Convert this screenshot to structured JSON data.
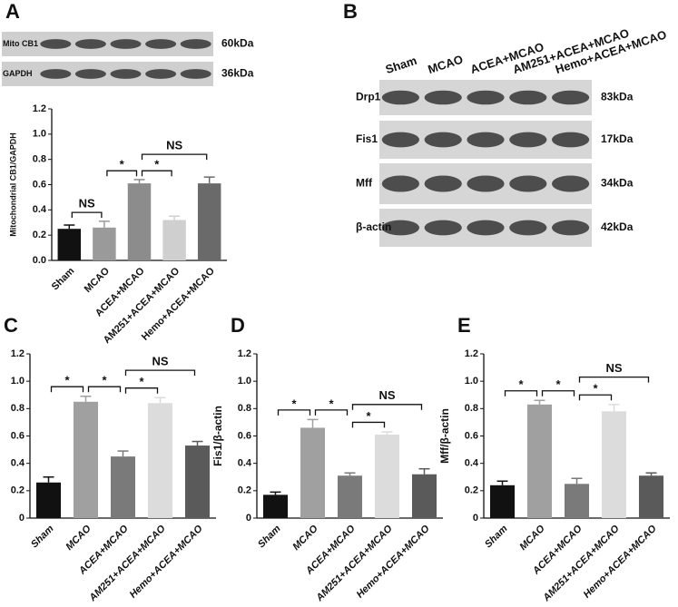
{
  "blots": [
    {
      "panel": "A",
      "rows": [
        {
          "label": "Mito CB1",
          "size": "60kDa"
        },
        {
          "label": "GAPDH",
          "size": "36kDa"
        }
      ]
    },
    {
      "panel": "B",
      "lanes": [
        "Sham",
        "MCAO",
        "ACEA+MCAO",
        "AM251+ACEA+MCAO",
        "Hemo+ACEA+MCAO"
      ],
      "rows": [
        {
          "label": "Drp1",
          "size": "83kDa"
        },
        {
          "label": "Fis1",
          "size": "17kDa"
        },
        {
          "label": "Mff",
          "size": "34kDa"
        },
        {
          "label": "β-actin",
          "size": "42kDa"
        }
      ]
    }
  ],
  "chart_data": [
    {
      "type": "bar",
      "panel": "A",
      "y_label": "Mitochondrial CB1/GAPDH",
      "italic": false,
      "categories": [
        "Sham",
        "MCAO",
        "ACEA+MCAO",
        "AM251+ACEA+MCAO",
        "Hemo+ACEA+MCAO"
      ],
      "values": [
        0.25,
        0.26,
        0.61,
        0.32,
        0.61
      ],
      "errors": [
        0.03,
        0.05,
        0.03,
        0.03,
        0.05
      ],
      "colors": [
        "#111111",
        "#9a9a9a",
        "#8c8c8c",
        "#cfcfcf",
        "#6a6a6a"
      ],
      "ylim": [
        0,
        1.2
      ],
      "yticks": [
        {
          "value": 0,
          "label": "0.0"
        },
        0.2,
        0.4,
        0.6,
        0.8,
        {
          "value": 1,
          "label": "1.0"
        },
        1.2
      ],
      "annotations": [
        {
          "from": "Sham",
          "to": "MCAO",
          "label": "NS"
        },
        {
          "from": "MCAO",
          "to": "ACEA+MCAO",
          "label": "*"
        },
        {
          "from": "ACEA+MCAO",
          "to": "AM251+ACEA+MCAO",
          "label": "*"
        },
        {
          "from": "ACEA+MCAO",
          "to": "Hemo+ACEA+MCAO",
          "label": "NS"
        }
      ]
    },
    {
      "type": "bar",
      "panel": "C",
      "y_label": "Drp1/β-actin",
      "italic": true,
      "categories": [
        "Sham",
        "MCAO",
        "ACEA+MCAO",
        "AM251+ACEA+MCAO",
        "Hemo+ACEA+MCAO"
      ],
      "values": [
        0.26,
        0.85,
        0.45,
        0.84,
        0.53
      ],
      "errors": [
        0.04,
        0.04,
        0.04,
        0.04,
        0.03
      ],
      "colors": [
        "#111111",
        "#a0a0a0",
        "#7a7a7a",
        "#dcdcdc",
        "#5a5a5a"
      ],
      "ylim": [
        0,
        1.2
      ],
      "yticks": [
        0,
        0.2,
        0.4,
        0.6,
        0.8,
        {
          "value": 1,
          "label": "1.0"
        },
        1.2
      ],
      "annotations": [
        {
          "from": "Sham",
          "to": "MCAO",
          "label": "*"
        },
        {
          "from": "MCAO",
          "to": "ACEA+MCAO",
          "label": "*"
        },
        {
          "from": "ACEA+MCAO",
          "to": "AM251+ACEA+MCAO",
          "label": "*"
        },
        {
          "from": "ACEA+MCAO",
          "to": "Hemo+ACEA+MCAO",
          "label": "NS"
        }
      ]
    },
    {
      "type": "bar",
      "panel": "D",
      "y_label": "Fis1/β-actin",
      "italic": true,
      "categories": [
        "Sham",
        "MCAO",
        "ACEA+MCAO",
        "AM251+ACEA+MCAO",
        "Hemo+ACEA+MCAO"
      ],
      "values": [
        0.17,
        0.66,
        0.31,
        0.61,
        0.32
      ],
      "errors": [
        0.02,
        0.06,
        0.02,
        0.02,
        0.04
      ],
      "colors": [
        "#111111",
        "#a0a0a0",
        "#7a7a7a",
        "#dcdcdc",
        "#5a5a5a"
      ],
      "ylim": [
        0,
        1.2
      ],
      "yticks": [
        0,
        0.2,
        0.4,
        0.6,
        0.8,
        {
          "value": 1,
          "label": "1.0"
        },
        1.2
      ],
      "annotations": [
        {
          "from": "Sham",
          "to": "MCAO",
          "label": "*"
        },
        {
          "from": "MCAO",
          "to": "ACEA+MCAO",
          "label": "*"
        },
        {
          "from": "ACEA+MCAO",
          "to": "AM251+ACEA+MCAO",
          "label": "*"
        },
        {
          "from": "ACEA+MCAO",
          "to": "Hemo+ACEA+MCAO",
          "label": "NS"
        }
      ]
    },
    {
      "type": "bar",
      "panel": "E",
      "y_label": "Mff/β-actin",
      "italic": true,
      "categories": [
        "Sham",
        "MCAO",
        "ACEA+MCAO",
        "AM251+ACEA+MCAO",
        "Hemo+ACEA+MCAO"
      ],
      "values": [
        0.24,
        0.83,
        0.25,
        0.78,
        0.31
      ],
      "errors": [
        0.03,
        0.03,
        0.04,
        0.05,
        0.02
      ],
      "colors": [
        "#111111",
        "#a0a0a0",
        "#7a7a7a",
        "#dcdcdc",
        "#5a5a5a"
      ],
      "ylim": [
        0,
        1.2
      ],
      "yticks": [
        0,
        0.2,
        0.4,
        0.6,
        0.8,
        {
          "value": 1,
          "label": "1.0"
        },
        1.2
      ],
      "annotations": [
        {
          "from": "Sham",
          "to": "MCAO",
          "label": "*"
        },
        {
          "from": "MCAO",
          "to": "ACEA+MCAO",
          "label": "*"
        },
        {
          "from": "ACEA+MCAO",
          "to": "AM251+ACEA+MCAO",
          "label": "*"
        },
        {
          "from": "ACEA+MCAO",
          "to": "Hemo+ACEA+MCAO",
          "label": "NS"
        }
      ]
    }
  ]
}
